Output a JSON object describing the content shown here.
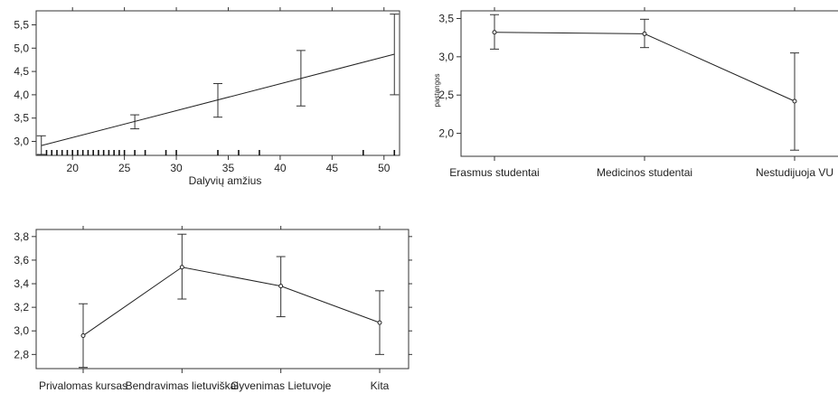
{
  "chart_data": [
    {
      "type": "line",
      "xlabel": "Dalyvių amžius",
      "ylabel": "",
      "xlim": [
        16.5,
        51.5
      ],
      "ylim": [
        2.7,
        5.8
      ],
      "xticks": [
        20,
        25,
        30,
        35,
        40,
        45,
        50
      ],
      "xtick_labels": [
        "20",
        "25",
        "30",
        "35",
        "40",
        "45",
        "50"
      ],
      "yticks": [
        3.0,
        3.5,
        4.0,
        4.5,
        5.0,
        5.5
      ],
      "ytick_labels": [
        "3,0",
        "3,5",
        "4,0",
        "4,5",
        "5,0",
        "5,5"
      ],
      "series": [
        {
          "kind": "regression_line",
          "x": [
            17,
            51
          ],
          "y": [
            2.91,
            4.87
          ]
        }
      ],
      "error_bars": [
        {
          "x": 17,
          "low": 2.72,
          "high": 3.12
        },
        {
          "x": 26,
          "low": 3.27,
          "high": 3.57
        },
        {
          "x": 34,
          "low": 3.52,
          "high": 4.24
        },
        {
          "x": 42,
          "low": 3.76,
          "high": 4.95
        },
        {
          "x": 51,
          "low": 4.0,
          "high": 5.73
        }
      ],
      "rug_x": [
        17.5,
        18,
        18.5,
        19,
        19.5,
        20,
        20.5,
        21,
        21.5,
        22,
        22.5,
        23,
        23.5,
        24,
        24.5,
        25,
        26,
        27,
        29,
        30,
        34,
        36,
        38,
        48,
        51
      ],
      "grid": false
    },
    {
      "type": "line",
      "xlabel": "",
      "ylabel": "pastangos",
      "categories": [
        "Erasmus studentai",
        "Medicinos studentai",
        "Nestudijuoja VU"
      ],
      "ylim": [
        1.7,
        3.6
      ],
      "yticks": [
        2.0,
        2.5,
        3.0,
        3.5
      ],
      "ytick_labels": [
        "2,0",
        "2,5",
        "3,0",
        "3,5"
      ],
      "values": [
        3.32,
        3.3,
        2.42
      ],
      "error_low": [
        3.1,
        3.12,
        1.78
      ],
      "error_high": [
        3.55,
        3.49,
        3.05
      ],
      "grid": false
    },
    {
      "type": "line",
      "xlabel": "",
      "ylabel": "",
      "categories": [
        "Privalomas kursas",
        "Bendravimas lietuviškai",
        "Gyvenimas Lietuvoje",
        "Kita"
      ],
      "ylim": [
        2.68,
        3.86
      ],
      "yticks": [
        2.8,
        3.0,
        3.2,
        3.4,
        3.6,
        3.8
      ],
      "ytick_labels": [
        "2,8",
        "3,0",
        "3,2",
        "3,4",
        "3,6",
        "3,8"
      ],
      "values": [
        2.96,
        3.54,
        3.38,
        3.07
      ],
      "error_low": [
        2.69,
        3.27,
        3.12,
        2.8
      ],
      "error_high": [
        3.23,
        3.82,
        3.63,
        3.34
      ],
      "grid": false
    }
  ]
}
